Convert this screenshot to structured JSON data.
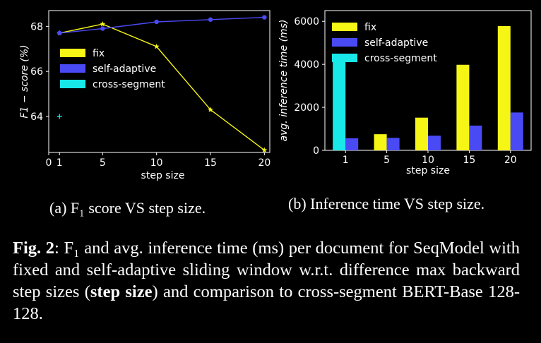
{
  "colors": {
    "fix": "#f5f516",
    "self_adaptive": "#4a4af5",
    "cross_segment": "#19e8e8",
    "background": "#000000",
    "foreground": "#ffffff"
  },
  "chart_data": [
    {
      "type": "line",
      "xlabel": "step size",
      "ylabel": "F1 − score (%)",
      "xticks": [
        0,
        1,
        5,
        10,
        15,
        20
      ],
      "yticks": [
        64,
        66,
        68
      ],
      "xlim": [
        0,
        20.5
      ],
      "ylim": [
        62.4,
        68.7
      ],
      "legend": "center-left",
      "series": [
        {
          "name": "fix",
          "x": [
            1,
            5,
            10,
            15,
            20
          ],
          "y": [
            67.7,
            68.1,
            67.1,
            64.3,
            62.5
          ],
          "color": "#f5f516",
          "marker": "star"
        },
        {
          "name": "self-adaptive",
          "x": [
            1,
            5,
            10,
            15,
            20
          ],
          "y": [
            67.7,
            67.9,
            68.2,
            68.3,
            68.4
          ],
          "color": "#4a4af5",
          "marker": "circle"
        },
        {
          "name": "cross-segment",
          "x": [
            1
          ],
          "y": [
            64.0
          ],
          "color": "#19e8e8",
          "marker": "plus"
        }
      ]
    },
    {
      "type": "bar",
      "xlabel": "step size",
      "ylabel": "avg. inference time (ms)",
      "categories": [
        "1",
        "5",
        "10",
        "15",
        "20"
      ],
      "yticks": [
        0,
        2000,
        4000,
        6000
      ],
      "ylim": [
        0,
        6500
      ],
      "legend": "top-left",
      "series": [
        {
          "name": "fix",
          "values": [
            null,
            750,
            1520,
            3980,
            5780
          ],
          "color": "#f5f516"
        },
        {
          "name": "self-adaptive",
          "values": [
            560,
            580,
            680,
            1150,
            1760
          ],
          "color": "#4a4af5"
        },
        {
          "name": "cross-segment",
          "values": [
            4260,
            null,
            null,
            null,
            null
          ],
          "color": "#19e8e8"
        }
      ]
    }
  ],
  "captions": {
    "a": "(a) F₁ score VS step size.",
    "b": "(b) Inference time VS step size.",
    "fig_label": "Fig. 2",
    "fig_text_1": ": F₁ and avg.  inference time (ms) per document for SeqModel with fixed and self-adaptive sliding window w.r.t. difference max backward step sizes (",
    "fig_bold": "step size",
    "fig_text_2": ") and comparison to cross-segment BERT-Base 128-128."
  }
}
